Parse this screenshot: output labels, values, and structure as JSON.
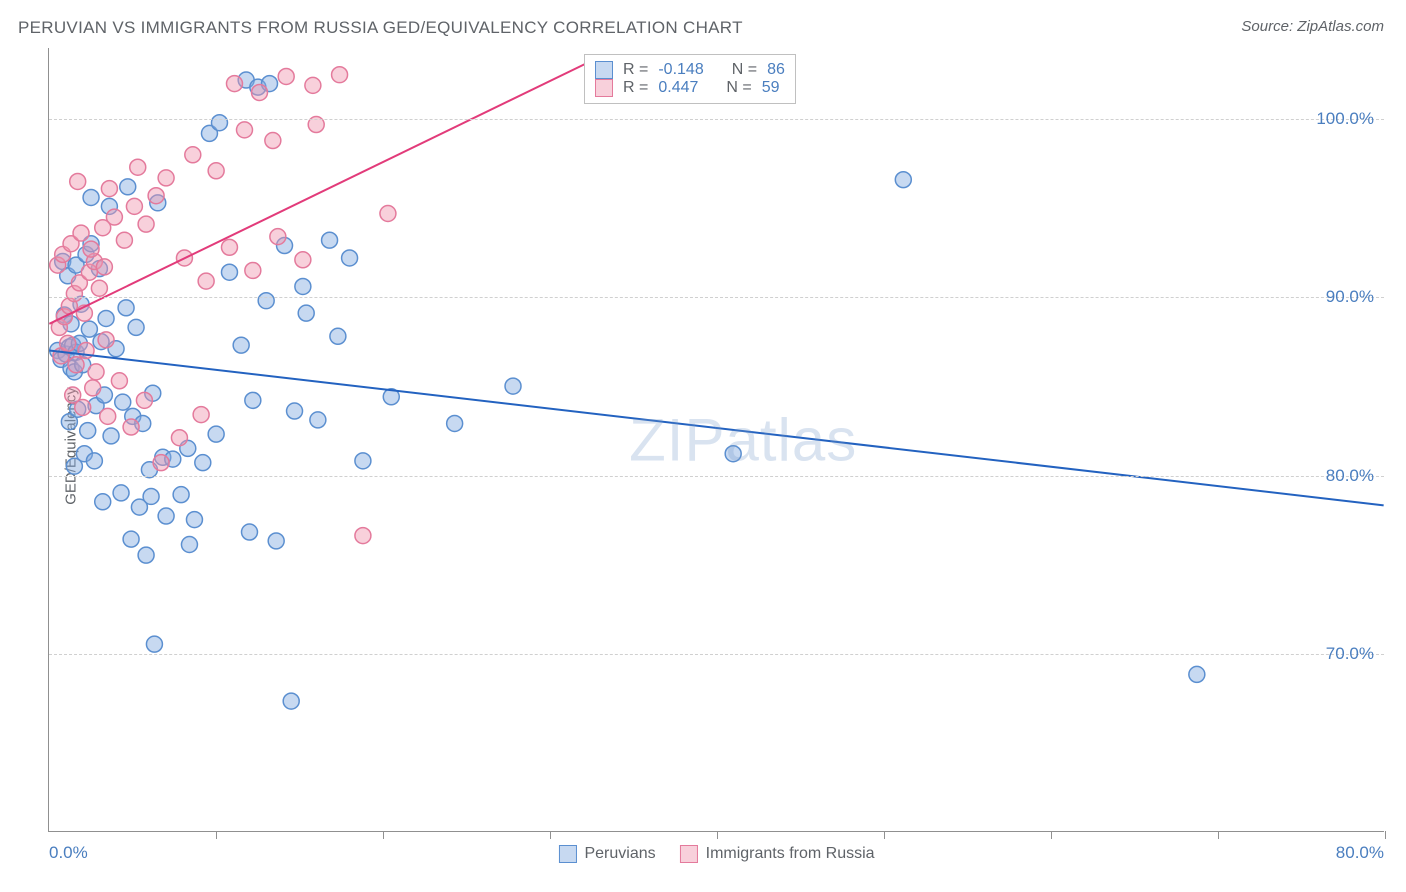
{
  "title": "PERUVIAN VS IMMIGRANTS FROM RUSSIA GED/EQUIVALENCY CORRELATION CHART",
  "source_label": "Source: ",
  "source_name": "ZipAtlas.com",
  "y_axis_label": "GED/Equivalency",
  "watermark": "ZIPatlas",
  "chart": {
    "type": "scatter",
    "xlim": [
      0,
      80
    ],
    "ylim": [
      60,
      104
    ],
    "x_tick_positions": [
      0,
      10,
      20,
      30,
      40,
      50,
      60,
      70,
      80
    ],
    "x_tick_labels_shown": {
      "left": "0.0%",
      "right": "80.0%"
    },
    "y_gridlines": [
      70,
      80,
      90,
      100
    ],
    "y_tick_labels": [
      "70.0%",
      "80.0%",
      "90.0%",
      "100.0%"
    ],
    "background_color": "#ffffff",
    "grid_color": "#d0d0d0",
    "axis_color": "#909090",
    "axis_label_color": "#4a7ebf",
    "marker_radius": 8,
    "marker_stroke_width": 1.5,
    "line_width": 2,
    "series": [
      {
        "name": "Peruvians",
        "fill_color": "rgba(130,170,225,0.45)",
        "stroke_color": "#5b8fd0",
        "line_color": "#2362c0",
        "R": "-0.148",
        "N": "86",
        "trend": {
          "x1": 0,
          "y1": 87,
          "x2": 80,
          "y2": 78.3
        },
        "points": [
          [
            0.5,
            87
          ],
          [
            0.7,
            86.5
          ],
          [
            1,
            86.8
          ],
          [
            1.2,
            87.2
          ],
          [
            1.3,
            86
          ],
          [
            1.4,
            87.3
          ],
          [
            1.5,
            85.8
          ],
          [
            1.6,
            86.9
          ],
          [
            1.8,
            87.4
          ],
          [
            2,
            86.2
          ],
          [
            0.8,
            92
          ],
          [
            1.1,
            91.2
          ],
          [
            1.6,
            91.8
          ],
          [
            2.2,
            92.4
          ],
          [
            2.5,
            93
          ],
          [
            3,
            91.6
          ],
          [
            0.9,
            89
          ],
          [
            1.3,
            88.5
          ],
          [
            1.9,
            89.6
          ],
          [
            2.4,
            88.2
          ],
          [
            3.1,
            87.5
          ],
          [
            3.4,
            88.8
          ],
          [
            4,
            87.1
          ],
          [
            4.6,
            89.4
          ],
          [
            5.2,
            88.3
          ],
          [
            1.2,
            83
          ],
          [
            1.7,
            83.7
          ],
          [
            2.3,
            82.5
          ],
          [
            2.8,
            83.9
          ],
          [
            3.3,
            84.5
          ],
          [
            3.7,
            82.2
          ],
          [
            4.4,
            84.1
          ],
          [
            5,
            83.3
          ],
          [
            5.6,
            82.9
          ],
          [
            6.2,
            84.6
          ],
          [
            1.5,
            80.5
          ],
          [
            2.1,
            81.2
          ],
          [
            2.7,
            80.8
          ],
          [
            6,
            80.3
          ],
          [
            6.8,
            81
          ],
          [
            7.4,
            80.9
          ],
          [
            8.3,
            81.5
          ],
          [
            9.2,
            80.7
          ],
          [
            10,
            82.3
          ],
          [
            4.3,
            79
          ],
          [
            5.4,
            78.2
          ],
          [
            6.1,
            78.8
          ],
          [
            7,
            77.7
          ],
          [
            7.9,
            78.9
          ],
          [
            8.7,
            77.5
          ],
          [
            11.8,
            102.2
          ],
          [
            12.5,
            101.8
          ],
          [
            13.2,
            102
          ],
          [
            9.6,
            99.2
          ],
          [
            10.2,
            99.8
          ],
          [
            14.1,
            92.9
          ],
          [
            16.8,
            93.2
          ],
          [
            18,
            92.2
          ],
          [
            15.4,
            89.1
          ],
          [
            17.3,
            87.8
          ],
          [
            4.9,
            76.4
          ],
          [
            5.8,
            75.5
          ],
          [
            8.4,
            76.1
          ],
          [
            12,
            76.8
          ],
          [
            13.6,
            76.3
          ],
          [
            2.5,
            95.6
          ],
          [
            3.6,
            95.1
          ],
          [
            4.7,
            96.2
          ],
          [
            6.5,
            95.3
          ],
          [
            3.2,
            78.5
          ],
          [
            6.3,
            70.5
          ],
          [
            14.5,
            67.3
          ],
          [
            12.2,
            84.2
          ],
          [
            14.7,
            83.6
          ],
          [
            20.5,
            84.4
          ],
          [
            24.3,
            82.9
          ],
          [
            27.8,
            85
          ],
          [
            41,
            81.2
          ],
          [
            51.2,
            96.6
          ],
          [
            68.8,
            68.8
          ],
          [
            10.8,
            91.4
          ],
          [
            13,
            89.8
          ],
          [
            15.2,
            90.6
          ],
          [
            11.5,
            87.3
          ],
          [
            16.1,
            83.1
          ],
          [
            18.8,
            80.8
          ]
        ]
      },
      {
        "name": "Immigrants from Russia",
        "fill_color": "rgba(240,150,175,0.45)",
        "stroke_color": "#e47a9c",
        "line_color": "#e23b7a",
        "R": "0.447",
        "N": "59",
        "trend": {
          "x1": 0,
          "y1": 88.5,
          "x2": 33,
          "y2": 103.5
        },
        "points": [
          [
            0.6,
            88.3
          ],
          [
            0.9,
            88.9
          ],
          [
            1.2,
            89.5
          ],
          [
            1.5,
            90.2
          ],
          [
            1.8,
            90.8
          ],
          [
            2.1,
            89.1
          ],
          [
            2.4,
            91.4
          ],
          [
            2.7,
            92
          ],
          [
            3,
            90.5
          ],
          [
            3.3,
            91.7
          ],
          [
            0.7,
            86.7
          ],
          [
            1.1,
            87.4
          ],
          [
            1.6,
            86.2
          ],
          [
            2.2,
            87
          ],
          [
            2.8,
            85.8
          ],
          [
            3.4,
            87.6
          ],
          [
            0.5,
            91.8
          ],
          [
            0.8,
            92.4
          ],
          [
            1.3,
            93
          ],
          [
            1.9,
            93.6
          ],
          [
            2.5,
            92.7
          ],
          [
            3.2,
            93.9
          ],
          [
            3.9,
            94.5
          ],
          [
            4.5,
            93.2
          ],
          [
            5.1,
            95.1
          ],
          [
            5.8,
            94.1
          ],
          [
            6.4,
            95.7
          ],
          [
            1.4,
            84.5
          ],
          [
            2,
            83.8
          ],
          [
            2.6,
            84.9
          ],
          [
            3.5,
            83.3
          ],
          [
            4.2,
            85.3
          ],
          [
            4.9,
            82.7
          ],
          [
            5.7,
            84.2
          ],
          [
            1.7,
            96.5
          ],
          [
            3.6,
            96.1
          ],
          [
            5.3,
            97.3
          ],
          [
            7,
            96.7
          ],
          [
            8.6,
            98
          ],
          [
            10,
            97.1
          ],
          [
            8.1,
            92.2
          ],
          [
            9.4,
            90.9
          ],
          [
            10.8,
            92.8
          ],
          [
            12.2,
            91.5
          ],
          [
            13.7,
            93.4
          ],
          [
            15.2,
            92.1
          ],
          [
            11.1,
            102
          ],
          [
            12.6,
            101.5
          ],
          [
            14.2,
            102.4
          ],
          [
            15.8,
            101.9
          ],
          [
            17.4,
            102.5
          ],
          [
            11.7,
            99.4
          ],
          [
            13.4,
            98.8
          ],
          [
            16,
            99.7
          ],
          [
            20.3,
            94.7
          ],
          [
            18.8,
            76.6
          ],
          [
            6.7,
            80.7
          ],
          [
            7.8,
            82.1
          ],
          [
            9.1,
            83.4
          ]
        ]
      }
    ]
  },
  "legend": {
    "series1_label": "Peruvians",
    "series2_label": "Immigrants from Russia"
  },
  "statbox": {
    "r_prefix": "R = ",
    "n_prefix": "N = "
  }
}
